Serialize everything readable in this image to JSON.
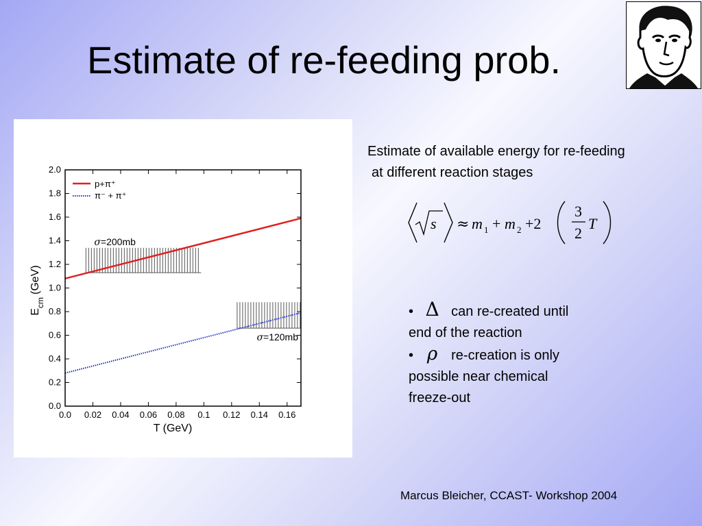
{
  "slide": {
    "title": "Estimate of re-feeding prob.",
    "description_line1": "Estimate of available energy for re-feeding",
    "description_line2": "at different reaction stages",
    "formula": {
      "lhs_sqrt": "s",
      "approx": "≈",
      "m1": "m",
      "m1_sub": "1",
      "plus1": "+",
      "m2": "m",
      "m2_sub": "2",
      "plus2": "+2",
      "frac_num": "3",
      "frac_den": "2",
      "var": "T"
    },
    "bullets": [
      {
        "bullet": "•",
        "symbol": "Δ",
        "text_line1": "can re-created until",
        "text_line2": "end of the reaction"
      },
      {
        "bullet": "•",
        "symbol": "ρ",
        "text_line1": "re-creation is only",
        "text_line2": "possible near chemical",
        "text_line3": "freeze-out"
      }
    ],
    "footer": "Marcus Bleicher, CCAST- Workshop 2004",
    "portrait_icon": "goethe-portrait"
  },
  "chart_data": {
    "type": "line",
    "xlabel": "T (GeV)",
    "ylabel": "E",
    "ylabel_sub": "cm",
    "ylabel_unit": "(GeV)",
    "xlim": [
      0.0,
      0.17
    ],
    "ylim": [
      0.0,
      2.0
    ],
    "xticks": [
      "0.0",
      "0.02",
      "0.04",
      "0.06",
      "0.08",
      "0.1",
      "0.12",
      "0.14",
      "0.16"
    ],
    "xtick_values": [
      0.0,
      0.02,
      0.04,
      0.06,
      0.08,
      0.1,
      0.12,
      0.14,
      0.16
    ],
    "yticks": [
      "0.0",
      "0.2",
      "0.4",
      "0.6",
      "0.8",
      "1.0",
      "1.2",
      "1.4",
      "1.6",
      "1.8",
      "2.0"
    ],
    "ytick_values": [
      0.0,
      0.2,
      0.4,
      0.6,
      0.8,
      1.0,
      1.2,
      1.4,
      1.6,
      1.8,
      2.0
    ],
    "series": [
      {
        "name": "p+π⁺",
        "color": "#e02020",
        "style": "solid",
        "x": [
          0.0,
          0.17
        ],
        "y": [
          1.08,
          1.59
        ]
      },
      {
        "name": "π⁻ + π⁺",
        "color": "#2030c0",
        "style": "dotted",
        "x": [
          0.0,
          0.17
        ],
        "y": [
          0.28,
          0.79
        ]
      }
    ],
    "legend": {
      "placement": "top-left",
      "entries": [
        "p+π⁺",
        "π⁻ + π⁺"
      ]
    },
    "bands": [
      {
        "label": "σ=200mb",
        "x_range": [
          0.015,
          0.098
        ],
        "y_range": [
          1.13,
          1.34
        ],
        "color": "#555555"
      },
      {
        "label": "σ=120mb",
        "x_range": [
          0.124,
          0.17
        ],
        "y_range": [
          0.66,
          0.88
        ],
        "color": "#555555"
      }
    ],
    "grid": false
  }
}
